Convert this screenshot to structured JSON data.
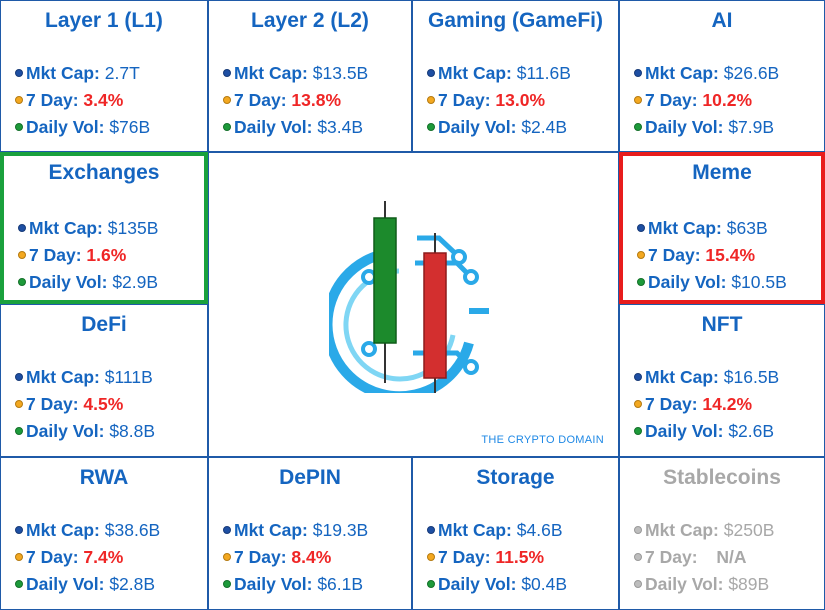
{
  "cards": {
    "layer1": {
      "title": "Layer 1 (L1)",
      "mkt_label": "Mkt Cap:",
      "mkt": "2.7T",
      "day_label": "7 Day:",
      "day": "3.4%",
      "vol_label": "Daily Vol:",
      "vol": "$76B"
    },
    "layer2": {
      "title": "Layer 2 (L2)",
      "mkt_label": "Mkt Cap:",
      "mkt": "$13.5B",
      "day_label": "7 Day:",
      "day": "13.8%",
      "vol_label": "Daily Vol:",
      "vol": "$3.4B"
    },
    "gaming": {
      "title": "Gaming (GameFi)",
      "mkt_label": "Mkt Cap:",
      "mkt": "$11.6B",
      "day_label": "7 Day:",
      "day": "13.0%",
      "vol_label": "Daily Vol:",
      "vol": "$2.4B"
    },
    "ai": {
      "title": "AI",
      "mkt_label": "Mkt Cap:",
      "mkt": "$26.6B",
      "day_label": "7 Day:",
      "day": "10.2%",
      "vol_label": "Daily Vol:",
      "vol": "$7.9B"
    },
    "exchanges": {
      "title": "Exchanges",
      "mkt_label": "Mkt Cap:",
      "mkt": "$135B",
      "day_label": "7 Day:",
      "day": "1.6%",
      "vol_label": "Daily Vol:",
      "vol": "$2.9B"
    },
    "meme": {
      "title": "Meme",
      "mkt_label": "Mkt Cap:",
      "mkt": "$63B",
      "day_label": "7 Day:",
      "day": "15.4%",
      "vol_label": "Daily Vol:",
      "vol": "$10.5B"
    },
    "defi": {
      "title": "DeFi",
      "mkt_label": "Mkt Cap:",
      "mkt": "$111B",
      "day_label": "7 Day:",
      "day": "4.5%",
      "vol_label": "Daily Vol:",
      "vol": "$8.8B"
    },
    "nft": {
      "title": "NFT",
      "mkt_label": "Mkt Cap:",
      "mkt": "$16.5B",
      "day_label": "7 Day:",
      "day": "14.2%",
      "vol_label": "Daily Vol:",
      "vol": "$2.6B"
    },
    "rwa": {
      "title": "RWA",
      "mkt_label": "Mkt Cap:",
      "mkt": "$38.6B",
      "day_label": "7 Day:",
      "day": "7.4%",
      "vol_label": "Daily Vol:",
      "vol": "$2.8B"
    },
    "depin": {
      "title": "DePIN",
      "mkt_label": "Mkt Cap:",
      "mkt": "$19.3B",
      "day_label": "7 Day:",
      "day": "8.4%",
      "vol_label": "Daily Vol:",
      "vol": "$6.1B"
    },
    "storage": {
      "title": "Storage",
      "mkt_label": "Mkt Cap:",
      "mkt": "$4.6B",
      "day_label": "7 Day:",
      "day": "11.5%",
      "vol_label": "Daily Vol:",
      "vol": "$0.4B"
    },
    "stablecoins": {
      "title": "Stablecoins",
      "mkt_label": "Mkt Cap:",
      "mkt": "$250B",
      "day_label": "7 Day:",
      "day": "N/A",
      "vol_label": "Daily Vol:",
      "vol": "$89B"
    }
  },
  "center": {
    "watermark": "THE CRYPTO DOMAIN",
    "logo_icon": "crypto-domain-logo-icon"
  },
  "colors": {
    "text_blue": "#1565c0",
    "positive_red": "#ef2626",
    "highlight_green": "#1aa13d",
    "highlight_red": "#e81c1c",
    "muted_grey": "#a8a8a8"
  }
}
